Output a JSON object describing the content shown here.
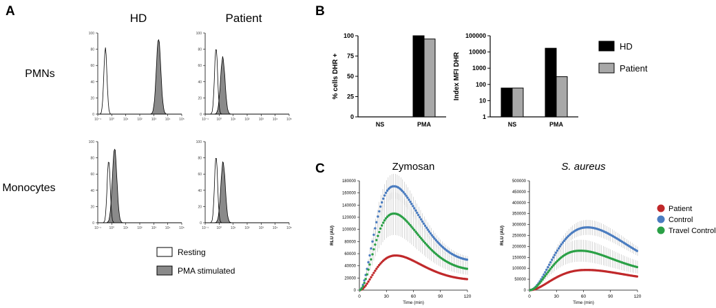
{
  "panel_a": {
    "letter": "A",
    "col_labels": [
      "HD",
      "Patient"
    ],
    "row_labels": [
      "PMNs",
      "Monocytes"
    ],
    "x_ticks": [
      "10⁻¹",
      "10⁰",
      "10¹",
      "10²",
      "10³",
      "10⁴",
      "10⁵"
    ],
    "y_ticks": [
      "0",
      "20",
      "40",
      "60",
      "80",
      "100"
    ],
    "legend": {
      "resting": "Resting",
      "stimulated": "PMA stimulated"
    },
    "colors": {
      "stimulated_fill": "#8a8a8a",
      "resting_fill": "#ffffff"
    }
  },
  "panel_b": {
    "letter": "B"
  },
  "panel_c": {
    "letter": "C"
  },
  "chart_data": [
    {
      "type": "area",
      "id": "hist-hd-pmn",
      "title": "HD — PMNs",
      "xscale": "log",
      "xlim": [
        0.1,
        100000
      ],
      "ylim": [
        0,
        100
      ],
      "series": [
        {
          "name": "Resting",
          "peak_x": 0.35,
          "peak_y": 82
        },
        {
          "name": "PMA stimulated",
          "peak_x": 2200,
          "peak_y": 93
        }
      ]
    },
    {
      "type": "area",
      "id": "hist-patient-pmn",
      "title": "Patient — PMNs",
      "xscale": "log",
      "xlim": [
        0.1,
        100000
      ],
      "ylim": [
        0,
        100
      ],
      "series": [
        {
          "name": "Resting",
          "peak_x": 0.6,
          "peak_y": 82
        },
        {
          "name": "PMA stimulated",
          "peak_x": 1.8,
          "peak_y": 70
        }
      ]
    },
    {
      "type": "area",
      "id": "hist-hd-mono",
      "title": "HD — Monocytes",
      "xscale": "log",
      "xlim": [
        0.1,
        100000
      ],
      "ylim": [
        0,
        100
      ],
      "series": [
        {
          "name": "Resting",
          "peak_x": 0.6,
          "peak_y": 77
        },
        {
          "name": "PMA stimulated",
          "peak_x": 1.6,
          "peak_y": 92
        }
      ]
    },
    {
      "type": "area",
      "id": "hist-patient-mono",
      "title": "Patient — Monocytes",
      "xscale": "log",
      "xlim": [
        0.1,
        100000
      ],
      "ylim": [
        0,
        100
      ],
      "series": [
        {
          "name": "Resting",
          "peak_x": 0.6,
          "peak_y": 82
        },
        {
          "name": "PMA stimulated",
          "peak_x": 1.9,
          "peak_y": 75
        }
      ]
    },
    {
      "type": "bar",
      "id": "bar-pct",
      "categories": [
        "NS",
        "PMA"
      ],
      "ylabel": "% cells DHR +",
      "ylim": [
        0,
        100
      ],
      "yticks": [
        "0",
        "25",
        "50",
        "75",
        "100"
      ],
      "series": [
        {
          "name": "HD",
          "values": [
            0,
            100
          ]
        },
        {
          "name": "Patient",
          "values": [
            0,
            96
          ]
        }
      ]
    },
    {
      "type": "bar",
      "id": "bar-mfi",
      "yscale": "log",
      "categories": [
        "NS",
        "PMA"
      ],
      "ylabel": "Index MFI DHR",
      "ylim": [
        1,
        100000
      ],
      "yticks": [
        "1",
        "10",
        "100",
        "1000",
        "10000",
        "100000"
      ],
      "series": [
        {
          "name": "HD",
          "values": [
            60,
            17000
          ]
        },
        {
          "name": "Patient",
          "values": [
            60,
            300
          ]
        }
      ],
      "legend": [
        {
          "label": "HD",
          "color": "#000000"
        },
        {
          "label": "Patient",
          "color": "#a8a8a8"
        }
      ]
    },
    {
      "type": "line",
      "id": "line-zymosan",
      "title": "Zymosan",
      "xlabel": "Time (min)",
      "ylabel": "RLU (AU)",
      "xlim": [
        0,
        120
      ],
      "ylim": [
        0,
        180000
      ],
      "xticks": [
        "0",
        "30",
        "60",
        "90",
        "120"
      ],
      "yticks": [
        "0",
        "20000",
        "40000",
        "60000",
        "80000",
        "100000",
        "120000",
        "140000",
        "160000",
        "180000"
      ],
      "series": [
        {
          "name": "Patient",
          "peak_t": 40,
          "peak": 57000,
          "end": 18000
        },
        {
          "name": "Control",
          "peak_t": 38,
          "peak": 171000,
          "end": 50000
        },
        {
          "name": "Travel Control",
          "peak_t": 38,
          "peak": 126000,
          "end": 35000
        }
      ]
    },
    {
      "type": "line",
      "id": "line-saureus",
      "title": "S. aureus",
      "xlabel": "Time (min)",
      "ylabel": "RLU (AU)",
      "xlim": [
        0,
        120
      ],
      "ylim": [
        0,
        500000
      ],
      "xticks": [
        "0",
        "30",
        "60",
        "90",
        "120"
      ],
      "yticks": [
        "0",
        "50000",
        "100000",
        "150000",
        "200000",
        "250000",
        "300000",
        "350000",
        "400000",
        "450000",
        "500000"
      ],
      "series": [
        {
          "name": "Patient",
          "peak_t": 62,
          "peak": 92000,
          "end": 62000
        },
        {
          "name": "Control",
          "peak_t": 64,
          "peak": 287000,
          "end": 178000
        },
        {
          "name": "Travel Control",
          "peak_t": 55,
          "peak": 180000,
          "end": 105000
        }
      ],
      "legend": [
        {
          "label": "Patient",
          "color": "#c0282a"
        },
        {
          "label": "Control",
          "color": "#4a7cc0"
        },
        {
          "label": "Travel Control",
          "color": "#2aa046"
        }
      ]
    }
  ]
}
